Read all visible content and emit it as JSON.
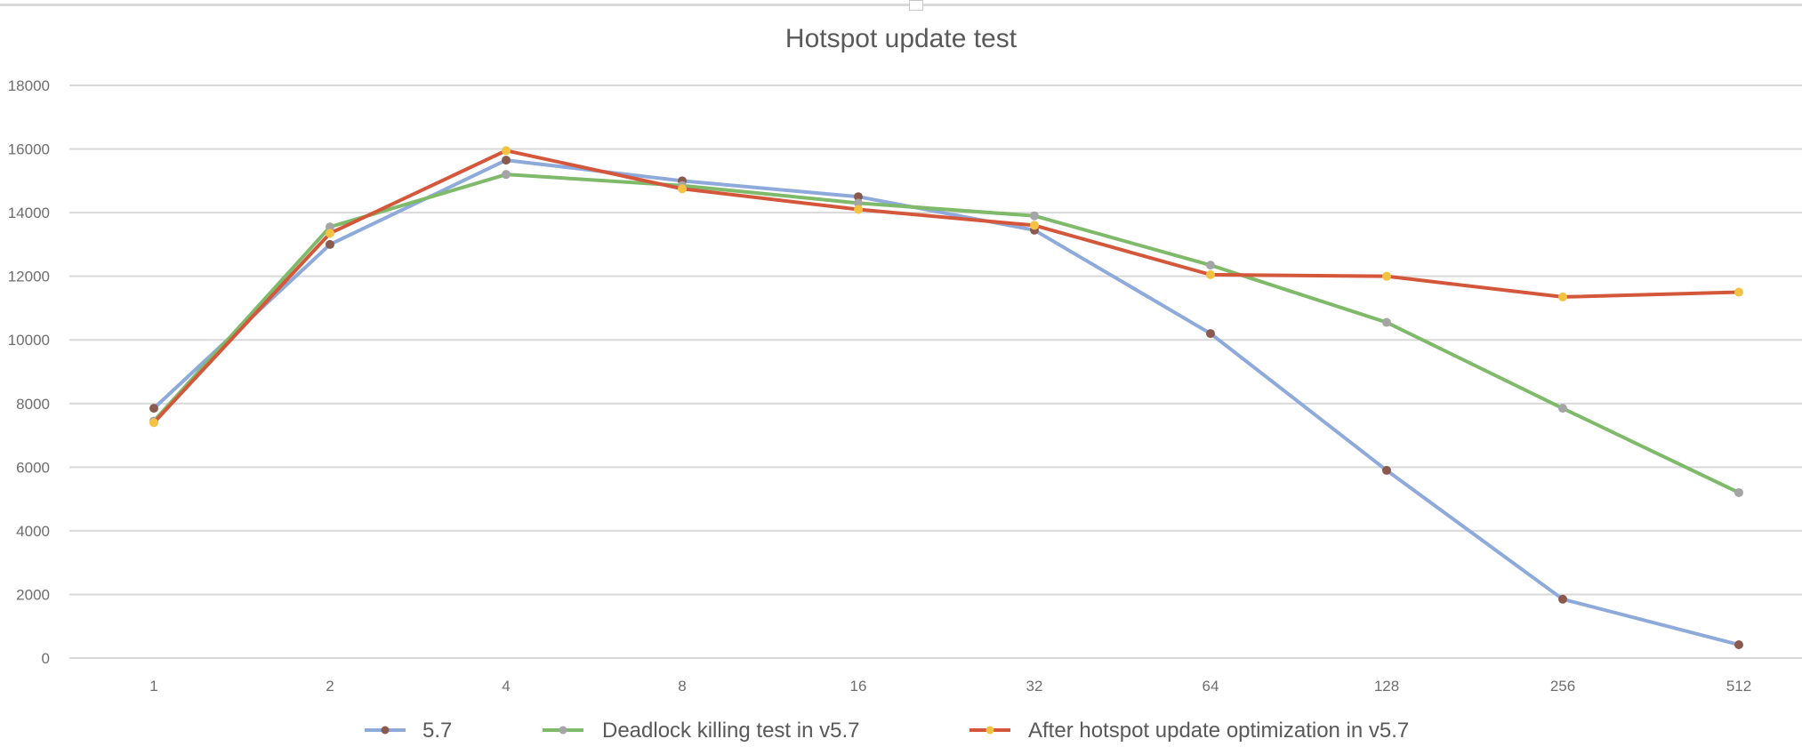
{
  "chart_data": {
    "type": "line",
    "title": "Hotspot update test",
    "xlabel": "",
    "ylabel": "",
    "categories": [
      "1",
      "2",
      "4",
      "8",
      "16",
      "32",
      "64",
      "128",
      "256",
      "512"
    ],
    "ylim": [
      0,
      18000
    ],
    "yticks": [
      0,
      2000,
      4000,
      6000,
      8000,
      10000,
      12000,
      14000,
      16000,
      18000
    ],
    "grid": true,
    "legend_position": "bottom",
    "series": [
      {
        "name": "5.7",
        "color": "#8eaadb",
        "marker_color": "#8b5a4f",
        "values": [
          7850,
          13000,
          15650,
          15000,
          14500,
          13450,
          10200,
          5900,
          1850,
          420
        ]
      },
      {
        "name": "Deadlock killing test in v5.7",
        "color": "#7fba6a",
        "marker_color": "#a5a5a5",
        "values": [
          7450,
          13550,
          15200,
          14850,
          14300,
          13900,
          12350,
          10550,
          7850,
          5200
        ]
      },
      {
        "name": "After hotspot update optimization in v5.7",
        "color": "#d4573b",
        "marker_color": "#f4c242",
        "values": [
          7400,
          13350,
          15950,
          14750,
          14100,
          13600,
          12050,
          12000,
          11350,
          11500
        ]
      }
    ]
  }
}
